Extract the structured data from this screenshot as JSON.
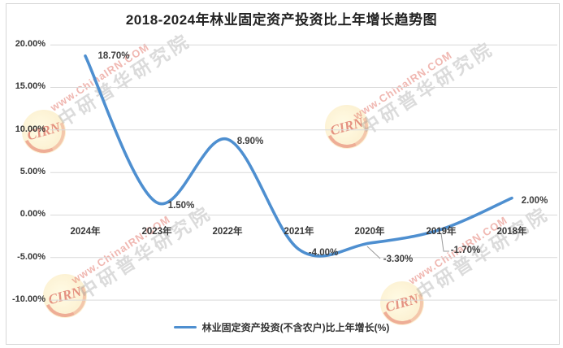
{
  "title": "2018-2024年林业固定资产投资比上年增长趋势图",
  "chart_data": {
    "type": "line",
    "smooth": true,
    "categories": [
      "2024年",
      "2023年",
      "2022年",
      "2021年",
      "2020年",
      "2019年",
      "2018年"
    ],
    "series": [
      {
        "name": "林业固定资产投资(不含农户)比上年增长(%)",
        "values": [
          18.7,
          1.5,
          8.9,
          -4.0,
          -3.3,
          -1.7,
          2.0
        ]
      }
    ],
    "data_labels": [
      "18.70%",
      "1.50%",
      "8.90%",
      "-4.00%",
      "-3.30%",
      "-1.70%",
      "2.00%"
    ],
    "y_ticks": [
      "20.00%",
      "15.00%",
      "10.00%",
      "5.00%",
      "0.00%",
      "-5.00%",
      "-10.00%"
    ],
    "ylim": [
      -10,
      20
    ],
    "grid": true,
    "legend_position": "bottom",
    "line_color": "#4e8fd0"
  },
  "legend": {
    "label": "林业固定资产投资(不含农户)比上年增长(%)"
  },
  "watermark": {
    "logo_text": "CIRN",
    "url_text": "www.ChinaIRN.COM",
    "cn_text": "中研普华研究院"
  }
}
